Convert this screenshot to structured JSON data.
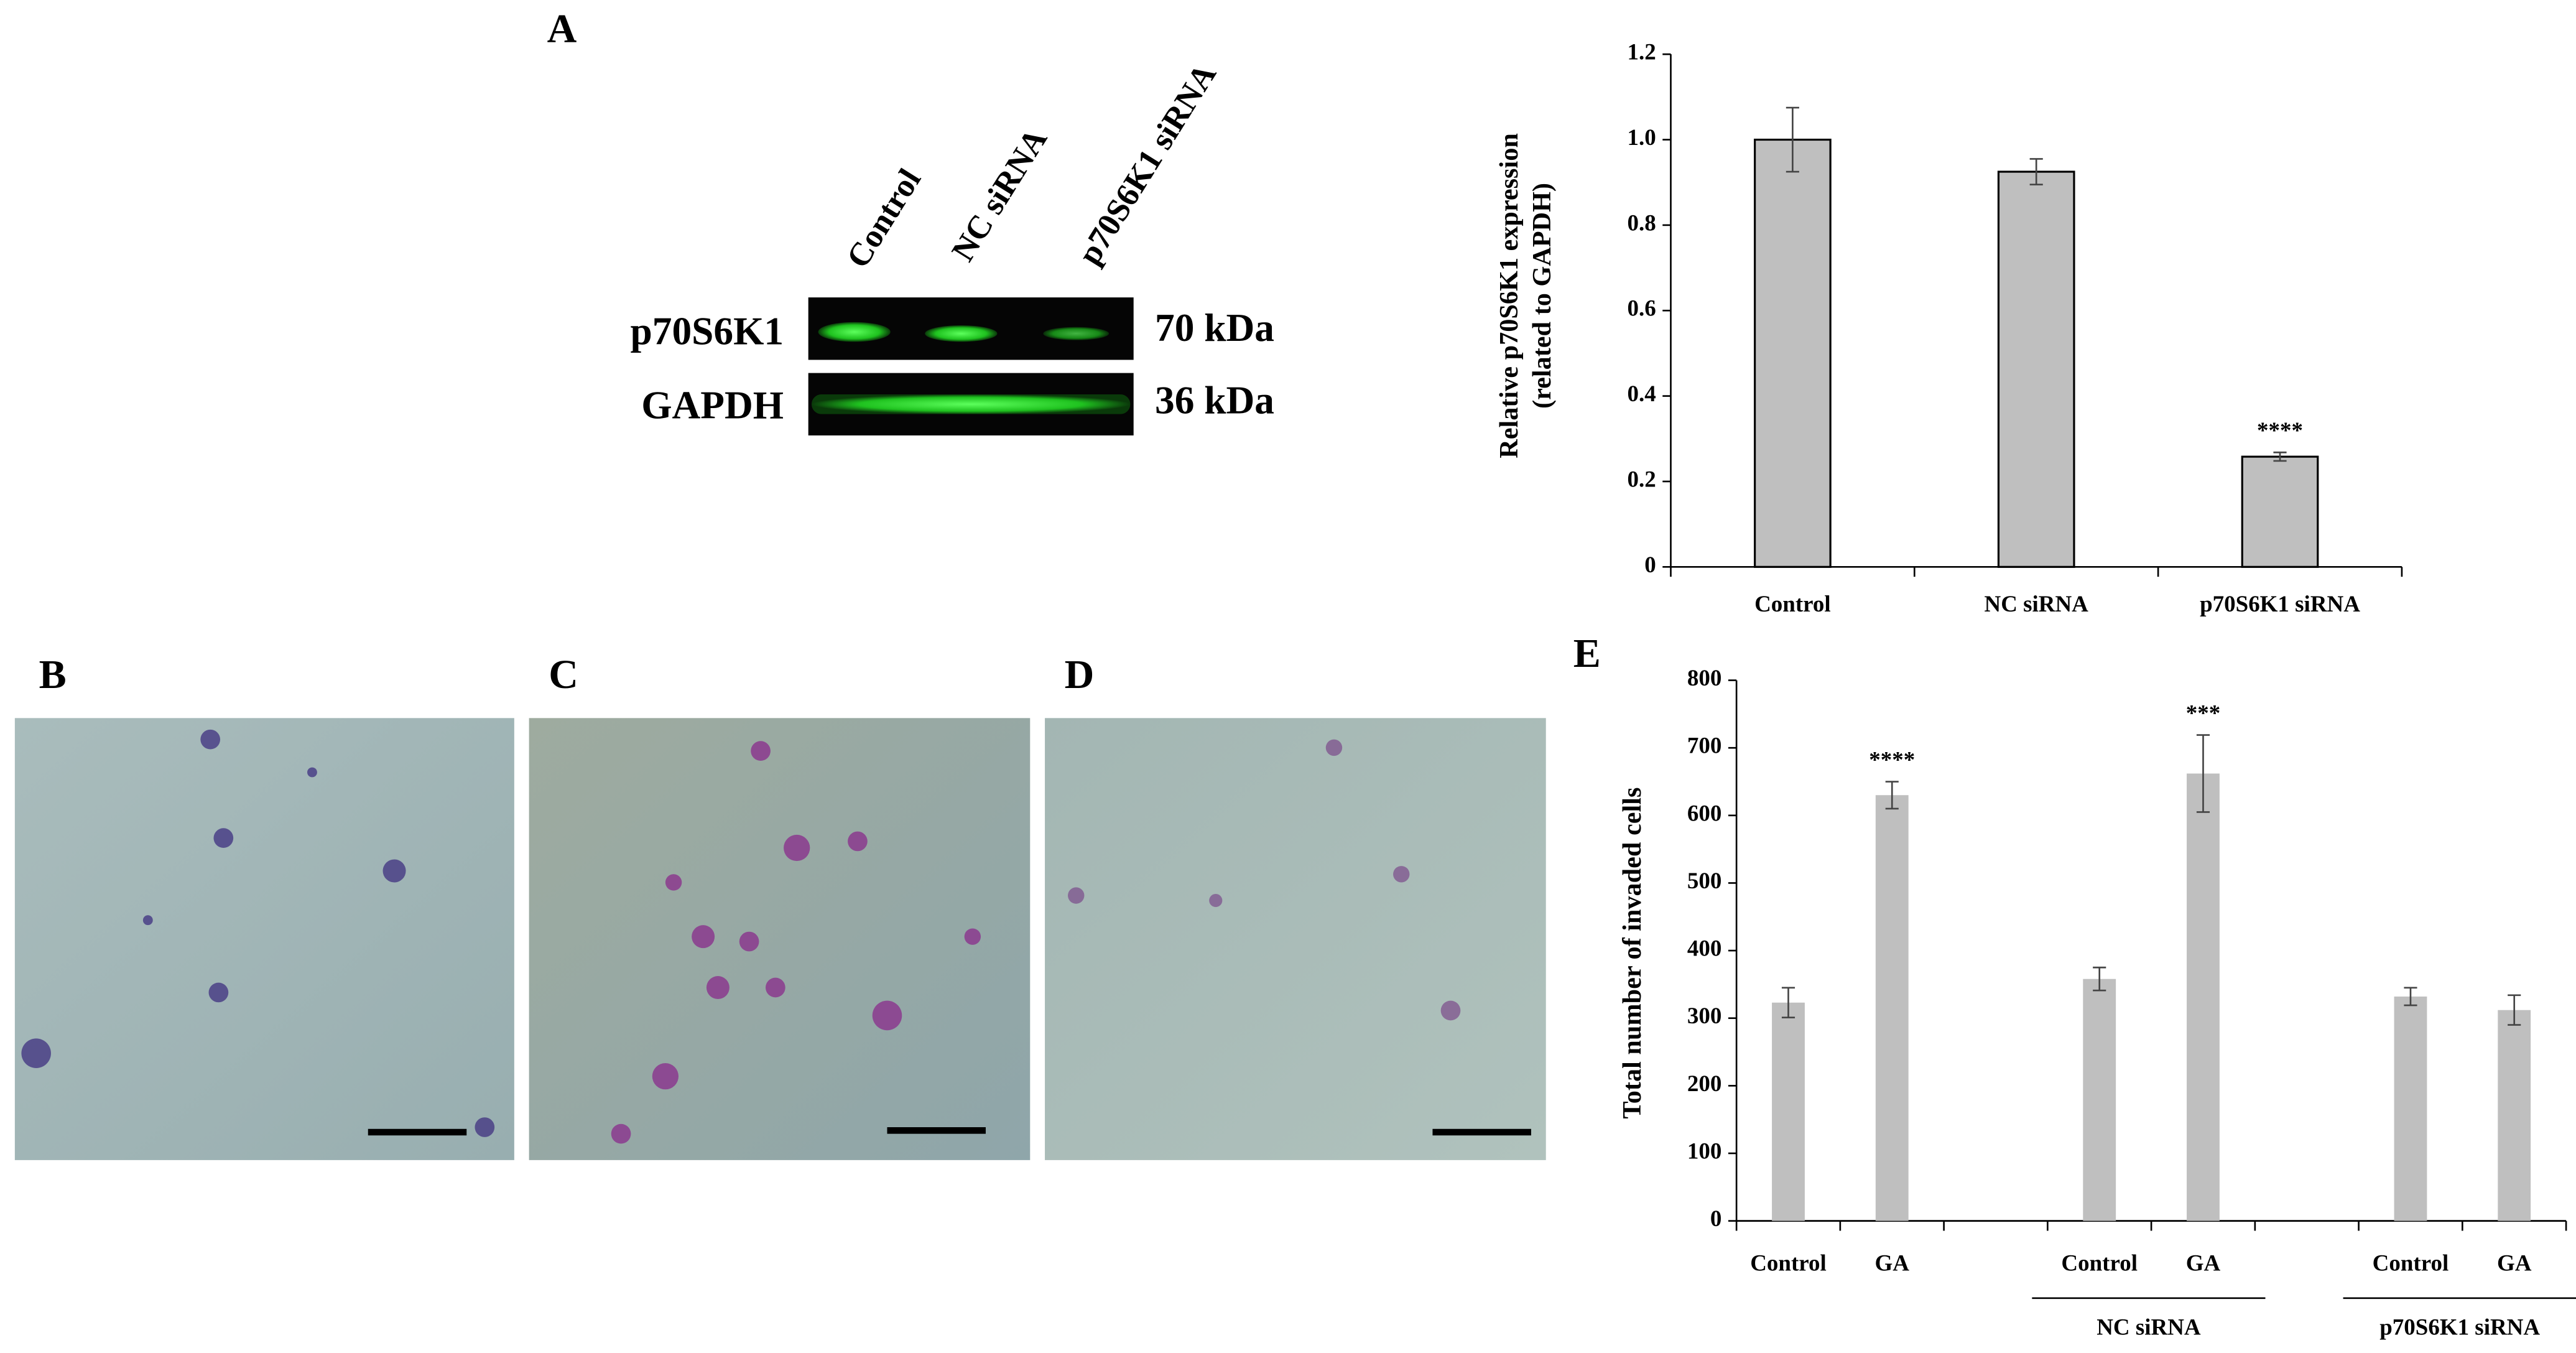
{
  "panel_labels": [
    "A",
    "B",
    "C",
    "D",
    "E"
  ],
  "blot": {
    "lanes": [
      "Control",
      "NC siRNA",
      "p70S6K1 siRNA"
    ],
    "rows": [
      {
        "protein": "p70S6K1",
        "size": "70 kDa"
      },
      {
        "protein": "GAPDH",
        "size": "36 kDa"
      }
    ]
  },
  "chart_data": [
    {
      "type": "bar",
      "y_label": [
        "Relative p70S6K1 expression",
        "(related to GAPDH)"
      ],
      "categories": [
        "Control",
        "NC siRNA",
        "p70S6K1 siRNA"
      ],
      "values": [
        1.0,
        0.925,
        0.258
      ],
      "errors": [
        0.075,
        0.03,
        0.01
      ],
      "value_annotations": [
        null,
        null,
        "****"
      ],
      "color": "#bfbfbf",
      "edge_color": "#000000",
      "ylim": [
        0,
        1.2
      ],
      "yticks": [
        0,
        0.2,
        0.4,
        0.6,
        0.8,
        {
          "value": 1,
          "label": "1.0"
        },
        1.2
      ]
    },
    {
      "type": "bar",
      "y_label": [
        "Total number of invaded cells"
      ],
      "categories": [
        "Control",
        "GA",
        null,
        "Control",
        "GA",
        null,
        "Control",
        "GA"
      ],
      "values": [
        323,
        630,
        null,
        358,
        662,
        null,
        332,
        312
      ],
      "errors": [
        22,
        20,
        null,
        17,
        57,
        null,
        13,
        22
      ],
      "value_annotations": [
        null,
        "****",
        null,
        null,
        "***",
        null,
        null,
        null
      ],
      "groups": [
        "NC siRNA",
        "p70S6K1 siRNA"
      ],
      "color": "#bfbfbf",
      "ylim": [
        0,
        800
      ],
      "yticks": [
        0,
        100,
        200,
        300,
        400,
        500,
        600,
        700,
        800
      ]
    }
  ]
}
